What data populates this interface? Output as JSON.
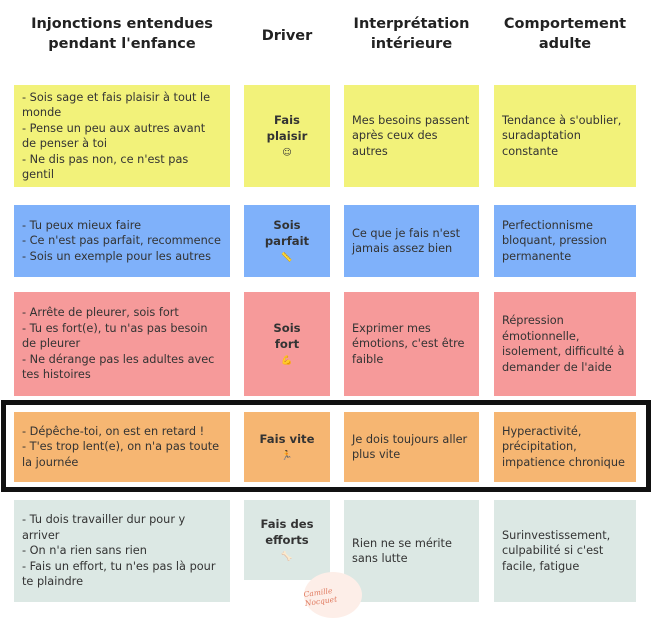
{
  "headers": {
    "col1": [
      "Injonctions entendues",
      "pendant l'enfance"
    ],
    "col2": "Driver",
    "col3": [
      "Interprétation",
      "intérieure"
    ],
    "col4": [
      "Comportement",
      "adulte"
    ]
  },
  "rows": [
    {
      "color": "#f2f27a",
      "injonctions": [
        "- Sois sage et fais plaisir à tout le monde",
        "- Pense un peu aux autres avant de penser à toi",
        "- Ne dis pas non, ce n'est pas gentil"
      ],
      "driver": [
        "Fais",
        "plaisir"
      ],
      "driver_icon": "☺",
      "interpretation": "Mes besoins passent après ceux des autres",
      "comportement": "Tendance à s'oublier, suradaptation constante"
    },
    {
      "color": "#7fb1fa",
      "injonctions": [
        "- Tu peux mieux faire",
        "- Ce n'est pas parfait, recommence",
        "- Sois un exemple pour les autres"
      ],
      "driver": [
        "Sois",
        "parfait"
      ],
      "driver_icon": "📏",
      "interpretation": "Ce que je fais n'est jamais assez bien",
      "comportement": "Perfectionnisme bloquant, pression permanente"
    },
    {
      "color": "#f69a9a",
      "injonctions": [
        "- Arrête de pleurer, sois fort",
        "- Tu es fort(e), tu n'as pas besoin de pleurer",
        "- Ne dérange pas les adultes avec tes histoires"
      ],
      "driver": [
        "Sois",
        "fort"
      ],
      "driver_icon": "💪",
      "interpretation": "Exprimer mes émotions, c'est être faible",
      "comportement": "Répression émotionnelle, isolement, difficulté à demander de l'aide"
    },
    {
      "color": "#f6b672",
      "injonctions": [
        "- Dépêche-toi, on est en retard !",
        "- T'es trop lent(e), on n'a pas toute la journée"
      ],
      "driver": [
        "Fais vite"
      ],
      "driver_icon": "🏃",
      "interpretation": "Je dois toujours aller plus vite",
      "comportement": "Hyperactivité, précipitation, impatience chronique"
    },
    {
      "color": "#dce8e4",
      "injonctions": [
        "- Tu dois travailler dur pour y arriver",
        "- On n'a rien sans rien",
        "- Fais un effort, tu n'es pas là pour te plaindre"
      ],
      "driver": [
        "Fais des",
        "efforts"
      ],
      "driver_icon": "🦴",
      "interpretation": "Rien ne se mérite sans lutte",
      "comportement": "Surinvestissement, culpabilité si c'est facile, fatigue"
    }
  ],
  "signature": "Camille Nocquet"
}
